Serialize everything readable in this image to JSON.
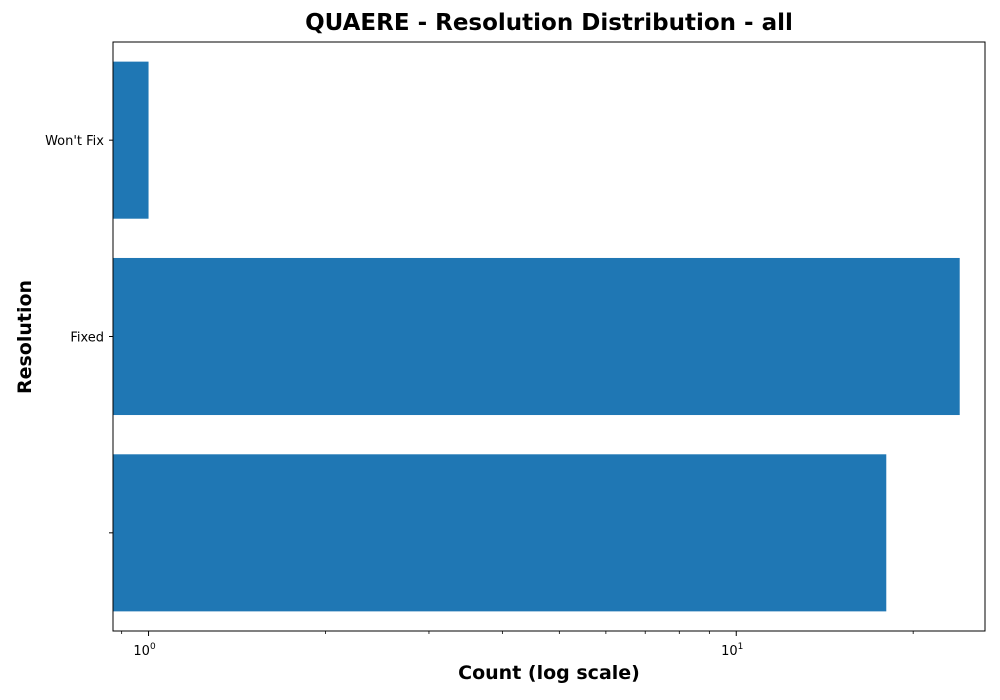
{
  "chart_data": {
    "type": "bar",
    "orientation": "horizontal",
    "title": "QUAERE - Resolution Distribution - all",
    "xlabel": "Count (log scale)",
    "ylabel": "Resolution",
    "categories": [
      "",
      "Fixed",
      "Won't Fix"
    ],
    "values": [
      18,
      24,
      1
    ],
    "xscale": "log",
    "xlim": [
      0.87,
      26.5
    ],
    "x_ticks": [
      {
        "value": 1,
        "label": "10",
        "exponent": "0"
      },
      {
        "value": 10,
        "label": "10",
        "exponent": "1"
      }
    ],
    "grid": false,
    "bar_color": "#1f77b4"
  }
}
